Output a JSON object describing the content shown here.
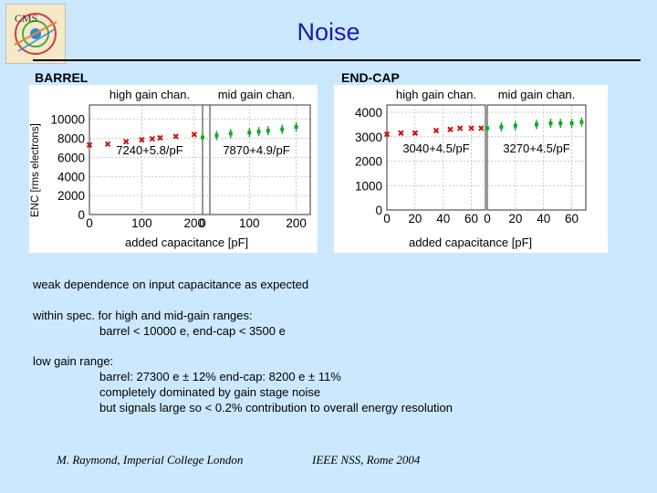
{
  "slide": {
    "title": "Noise",
    "logo": {
      "icon": "cms-logo",
      "text": "CMS"
    }
  },
  "panels": {
    "barrel": {
      "label": "BARREL"
    },
    "endcap": {
      "label": "END-CAP"
    }
  },
  "y_axis_label": "ENC [rms electrons]",
  "colors": {
    "high_gain": "#cc1111",
    "mid_gain": "#11aa22",
    "title": "#1a1ab0",
    "background": "#cce8ff"
  },
  "chart_data": [
    {
      "type": "scatter",
      "panel": "BARREL",
      "series_label": "high gain chan.",
      "fit": "7240+5.8/pF",
      "xlabel": "added capacitance [pF]",
      "ylabel": "ENC [rms electrons]",
      "xlim": [
        0,
        230
      ],
      "ylim": [
        0,
        11500
      ],
      "xticks": [
        "0",
        "100",
        "200"
      ],
      "yticks": [
        "0",
        "2000",
        "4000",
        "6000",
        "8000",
        "10000"
      ],
      "points": [
        [
          0,
          7300
        ],
        [
          35,
          7400
        ],
        [
          70,
          7650
        ],
        [
          100,
          7850
        ],
        [
          120,
          7950
        ],
        [
          135,
          8050
        ],
        [
          165,
          8200
        ],
        [
          200,
          8400
        ]
      ],
      "color": "#cc1111",
      "grid": true
    },
    {
      "type": "scatter",
      "panel": "BARREL",
      "series_label": "mid gain chan.",
      "fit": "7870+4.9/pF",
      "xlabel": "added capacitance [pF]",
      "ylim": [
        0,
        11500
      ],
      "xlim": [
        0,
        230
      ],
      "xticks": [
        "0",
        "100",
        "200"
      ],
      "points": [
        [
          0,
          8100
        ],
        [
          30,
          8300
        ],
        [
          60,
          8500
        ],
        [
          100,
          8600
        ],
        [
          120,
          8700
        ],
        [
          140,
          8800
        ],
        [
          170,
          8950
        ],
        [
          200,
          9200
        ]
      ],
      "color": "#11aa22",
      "grid": true
    },
    {
      "type": "scatter",
      "panel": "END-CAP",
      "series_label": "high gain chan.",
      "fit": "3040+4.5/pF",
      "xlabel": "added capacitance [pF]",
      "ylabel": "ENC [rms electrons]",
      "xlim": [
        0,
        70
      ],
      "ylim": [
        0,
        4300
      ],
      "xticks": [
        "0",
        "20",
        "40",
        "60"
      ],
      "yticks": [
        "0",
        "1000",
        "2000",
        "3000",
        "4000"
      ],
      "points": [
        [
          0,
          3100
        ],
        [
          10,
          3150
        ],
        [
          20,
          3150
        ],
        [
          35,
          3250
        ],
        [
          45,
          3300
        ],
        [
          52,
          3350
        ],
        [
          60,
          3350
        ],
        [
          67,
          3350
        ]
      ],
      "color": "#cc1111",
      "grid": true
    },
    {
      "type": "scatter",
      "panel": "END-CAP",
      "series_label": "mid gain chan.",
      "fit": "3270+4.5/pF",
      "xlabel": "added capacitance [pF]",
      "xlim": [
        0,
        70
      ],
      "ylim": [
        0,
        4300
      ],
      "xticks": [
        "0",
        "20",
        "40",
        "60"
      ],
      "points": [
        [
          0,
          3350
        ],
        [
          10,
          3400
        ],
        [
          20,
          3450
        ],
        [
          35,
          3500
        ],
        [
          45,
          3550
        ],
        [
          52,
          3550
        ],
        [
          60,
          3550
        ],
        [
          67,
          3600
        ]
      ],
      "color": "#11aa22",
      "grid": true
    }
  ],
  "text": {
    "line1": "weak dependence on input capacitance as expected",
    "line2": "within spec. for high and mid-gain ranges:",
    "line3": "barrel < 10000 e,  end-cap < 3500 e",
    "line4": "low gain range:",
    "line5": "barrel: 27300 e ± 12%      end-cap: 8200 e ± 11%",
    "line6": "completely dominated by gain stage noise",
    "line7": "but signals large so < 0.2% contribution to overall energy resolution"
  },
  "footer": {
    "author": "M. Raymond, Imperial College London",
    "venue": "IEEE NSS, Rome 2004"
  }
}
